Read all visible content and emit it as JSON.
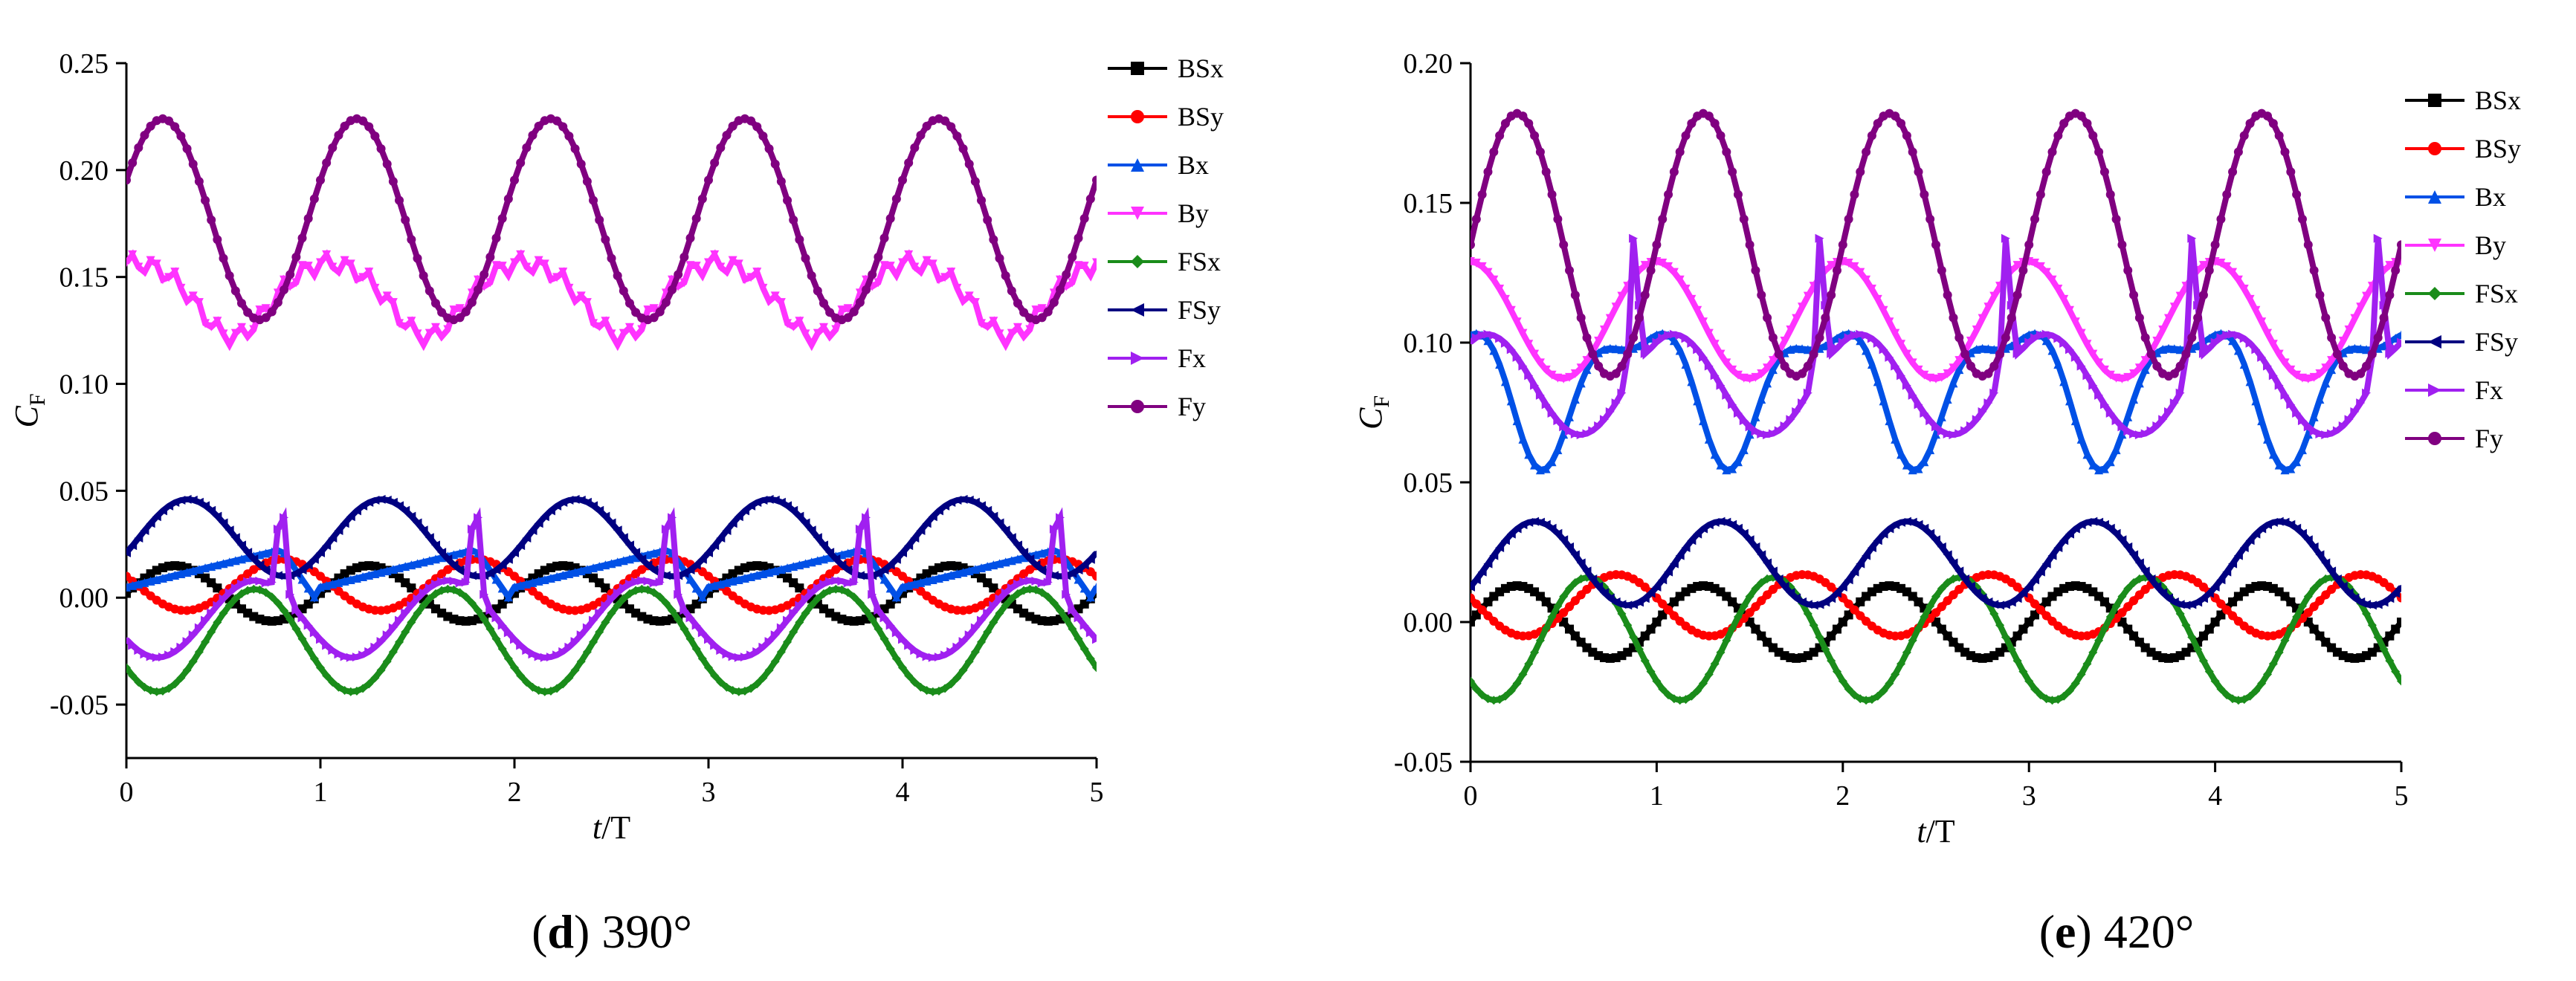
{
  "chart_data": [
    {
      "type": "line",
      "caption": {
        "letter": "d",
        "rest": " 390°"
      },
      "xlabel": {
        "italic": "t",
        "rest": "/T"
      },
      "ylabel": {
        "main": "C",
        "sub": "F"
      },
      "xlim": [
        0,
        5
      ],
      "ylim": [
        -0.075,
        0.25
      ],
      "xticks": [
        "0",
        "1",
        "2",
        "3",
        "4",
        "5"
      ],
      "xtick_values": [
        0,
        1,
        2,
        3,
        4,
        5
      ],
      "yticks": [
        "-0.05",
        "0.00",
        "0.05",
        "0.10",
        "0.15",
        "0.20",
        "0.25"
      ],
      "ytick_values": [
        -0.05,
        0,
        0.05,
        0.1,
        0.15,
        0.2,
        0.25
      ],
      "legend_position": "top-right outside",
      "series": [
        {
          "name": "BSx",
          "color": "#000000",
          "marker": "square",
          "model": {
            "type": "sine",
            "mean": 0.002,
            "amp": 0.013,
            "phase": 0.0
          },
          "points": 160
        },
        {
          "name": "BSy",
          "color": "#ff0000",
          "marker": "circle",
          "model": {
            "type": "sine",
            "mean": 0.006,
            "amp": 0.012,
            "phase": 2.8
          },
          "points": 160
        },
        {
          "name": "Bx",
          "color": "#0050e6",
          "marker": "triangle-up",
          "model": {
            "type": "saw",
            "base": 0.005,
            "slope": 0.022,
            "drop": 0.8,
            "peakAdd": 0.0
          },
          "points": 160
        },
        {
          "name": "By",
          "color": "#ff33ff",
          "marker": "triangle-down",
          "model": {
            "type": "trough",
            "mean": 0.157,
            "amp": 0.035,
            "center": 0.55,
            "width": 0.18,
            "noise": 0.004
          },
          "points": 160
        },
        {
          "name": "FSx",
          "color": "#1a8c1a",
          "marker": "diamond",
          "model": {
            "type": "sine",
            "mean": -0.02,
            "amp": 0.024,
            "phase": 3.7
          },
          "points": 160
        },
        {
          "name": "FSy",
          "color": "#000080",
          "marker": "triangle-left",
          "model": {
            "type": "sine",
            "mean": 0.028,
            "amp": 0.018,
            "phase": -0.4
          },
          "points": 160
        },
        {
          "name": "Fx",
          "color": "#a020f0",
          "marker": "triangle-right",
          "model": {
            "type": "spike",
            "mean": -0.01,
            "amp": 0.018,
            "phase": 3.7,
            "spikeAt": 0.8,
            "spikeH": 0.045
          },
          "points": 160
        },
        {
          "name": "Fy",
          "color": "#800080",
          "marker": "circle",
          "model": {
            "type": "sine",
            "mean": 0.177,
            "amp": 0.047,
            "phase": 0.4
          },
          "points": 160
        }
      ]
    },
    {
      "type": "line",
      "caption": {
        "letter": "e",
        "rest": " 420°"
      },
      "xlabel": {
        "italic": "t",
        "rest": "/T"
      },
      "ylabel": {
        "main": "C",
        "sub": "F"
      },
      "xlim": [
        0,
        5
      ],
      "ylim": [
        -0.05,
        0.2
      ],
      "xticks": [
        "0",
        "1",
        "2",
        "3",
        "4",
        "5"
      ],
      "xtick_values": [
        0,
        1,
        2,
        3,
        4,
        5
      ],
      "yticks": [
        "-0.05",
        "0.00",
        "0.05",
        "0.10",
        "0.15",
        "0.20"
      ],
      "ytick_values": [
        -0.05,
        0,
        0.05,
        0.1,
        0.15,
        0.2
      ],
      "legend_position": "top-right outside",
      "series": [
        {
          "name": "BSx",
          "color": "#000000",
          "marker": "square",
          "model": {
            "type": "sine",
            "mean": 0.0,
            "amp": 0.013,
            "phase": 0.0
          },
          "points": 160
        },
        {
          "name": "BSy",
          "color": "#ff0000",
          "marker": "circle",
          "model": {
            "type": "sine",
            "mean": 0.006,
            "amp": 0.011,
            "phase": 2.9
          },
          "points": 160
        },
        {
          "name": "Bx",
          "color": "#0050e6",
          "marker": "triangle-up",
          "model": {
            "type": "sine2",
            "mean": 0.085,
            "amp": 0.022,
            "phase": 2.2
          },
          "points": 160
        },
        {
          "name": "By",
          "color": "#ff33ff",
          "marker": "triangle-down",
          "model": {
            "type": "sine",
            "mean": 0.108,
            "amp": 0.021,
            "phase": 1.6
          },
          "points": 160
        },
        {
          "name": "FSx",
          "color": "#1a8c1a",
          "marker": "diamond",
          "model": {
            "type": "sine",
            "mean": -0.006,
            "amp": 0.022,
            "phase": 3.9
          },
          "points": 160
        },
        {
          "name": "FSy",
          "color": "#000080",
          "marker": "triangle-left",
          "model": {
            "type": "sine",
            "mean": 0.021,
            "amp": 0.015,
            "phase": -0.6
          },
          "points": 160
        },
        {
          "name": "Fx",
          "color": "#a020f0",
          "marker": "triangle-right",
          "model": {
            "type": "spike",
            "mean": 0.085,
            "amp": 0.018,
            "phase": 1.0,
            "spikeAt": 0.88,
            "spikeH": 0.05
          },
          "points": 160
        },
        {
          "name": "Fy",
          "color": "#800080",
          "marker": "circle",
          "model": {
            "type": "sine",
            "mean": 0.135,
            "amp": 0.047,
            "phase": 0.0
          },
          "points": 160
        }
      ]
    }
  ]
}
